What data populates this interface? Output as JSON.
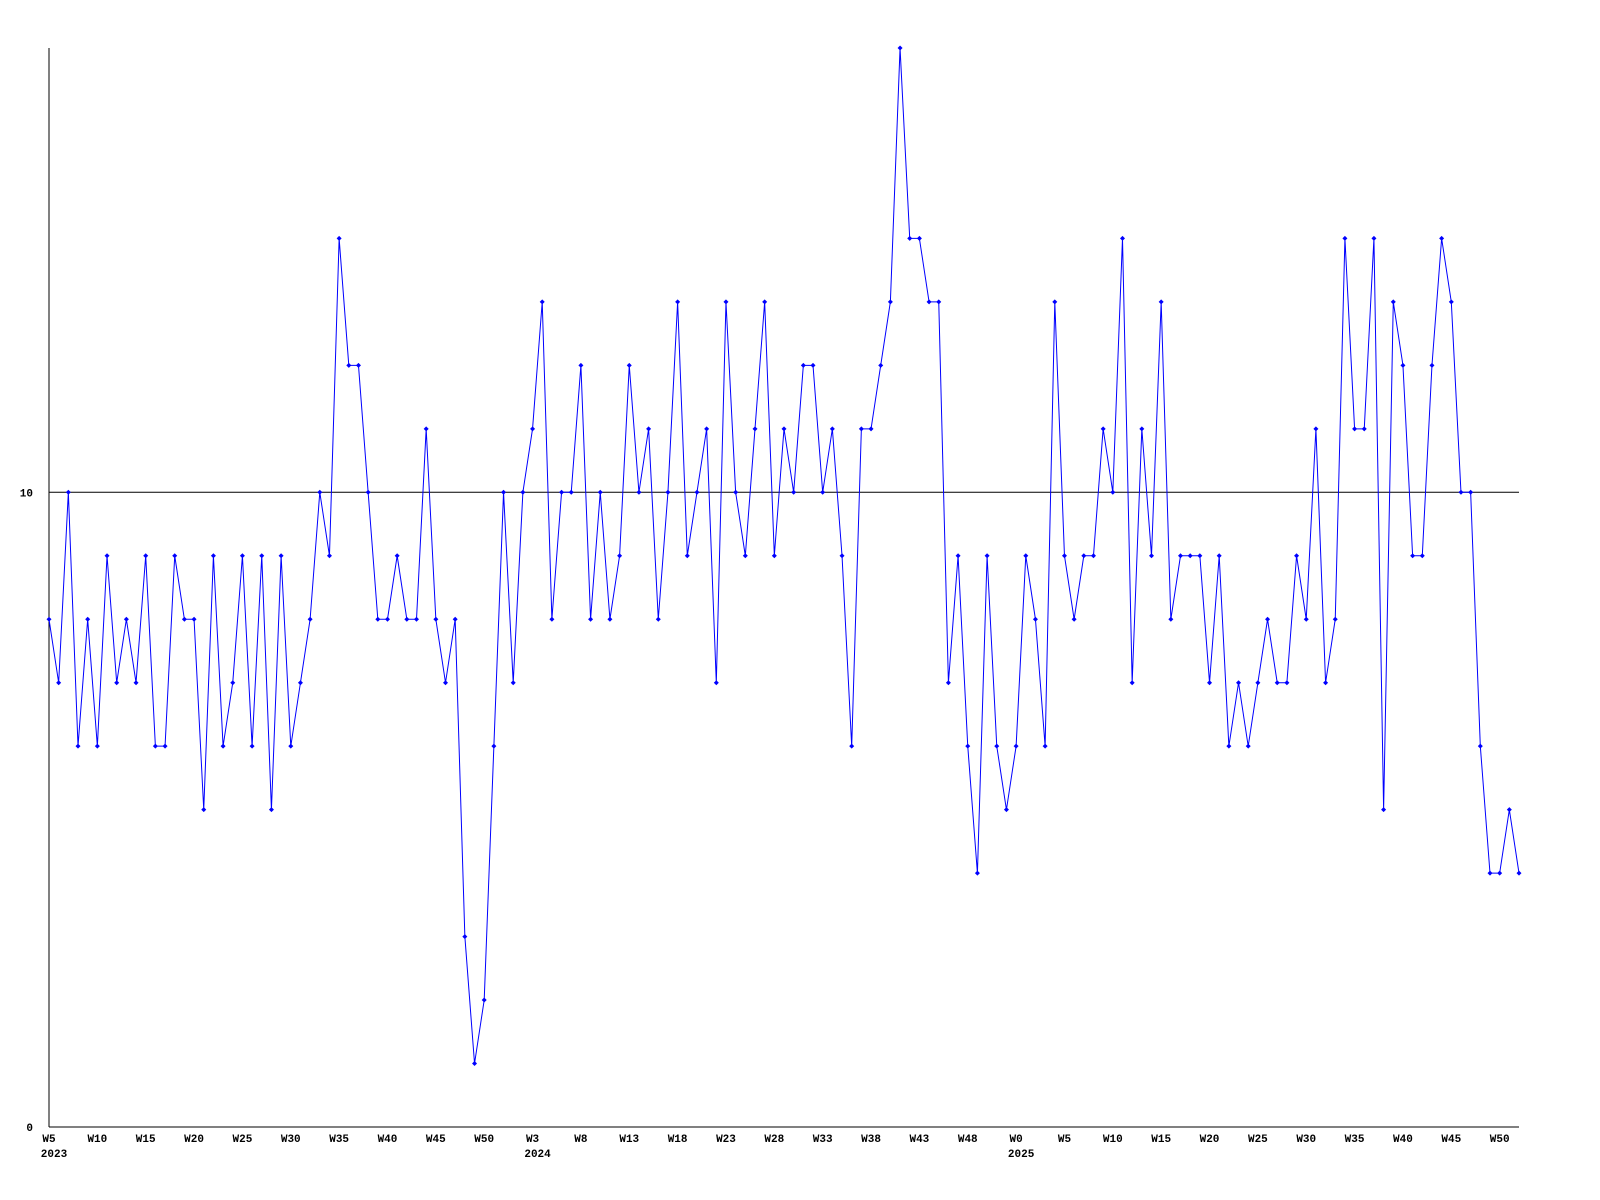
{
  "chart_data": {
    "type": "line",
    "categories": [
      "W5",
      null,
      null,
      null,
      null,
      "W10",
      null,
      null,
      null,
      null,
      "W15",
      null,
      null,
      null,
      null,
      "W20",
      null,
      null,
      null,
      null,
      "W25",
      null,
      null,
      null,
      null,
      "W30",
      null,
      null,
      null,
      null,
      "W35",
      null,
      null,
      null,
      null,
      "W40",
      null,
      null,
      null,
      null,
      "W45",
      null,
      null,
      null,
      null,
      "W50",
      null,
      null,
      null,
      null,
      "W3",
      null,
      null,
      null,
      null,
      "W8",
      null,
      null,
      null,
      null,
      "W13",
      null,
      null,
      null,
      null,
      "W18",
      null,
      null,
      null,
      null,
      "W23",
      null,
      null,
      null,
      null,
      "W28",
      null,
      null,
      null,
      null,
      "W33",
      null,
      null,
      null,
      null,
      "W38",
      null,
      null,
      null,
      null,
      "W43",
      null,
      null,
      null,
      null,
      "W48",
      null,
      null,
      null,
      null,
      "W0",
      null,
      null,
      null,
      null,
      "W5",
      null,
      null,
      null,
      null,
      "W10",
      null,
      null,
      null,
      null,
      "W15",
      null,
      null,
      null,
      null,
      "W20",
      null,
      null,
      null,
      null,
      "W25",
      null,
      null,
      null,
      null,
      "W30",
      null,
      null,
      null,
      null,
      "W35",
      null,
      null,
      null,
      null,
      "W40",
      null,
      null,
      null,
      null,
      "W45",
      null,
      null,
      null,
      null,
      "W50",
      null,
      null
    ],
    "year_categories": [
      "2023",
      null,
      null,
      null,
      null,
      null,
      null,
      null,
      null,
      null,
      null,
      null,
      null,
      null,
      null,
      null,
      null,
      null,
      null,
      null,
      null,
      null,
      null,
      null,
      null,
      null,
      null,
      null,
      null,
      null,
      null,
      null,
      null,
      null,
      null,
      null,
      null,
      null,
      null,
      null,
      null,
      null,
      null,
      null,
      null,
      null,
      null,
      null,
      null,
      null,
      "2024",
      null,
      null,
      null,
      null,
      null,
      null,
      null,
      null,
      null,
      null,
      null,
      null,
      null,
      null,
      null,
      null,
      null,
      null,
      null,
      null,
      null,
      null,
      null,
      null,
      null,
      null,
      null,
      null,
      null,
      null,
      null,
      null,
      null,
      null,
      null,
      null,
      null,
      null,
      null,
      null,
      null,
      null,
      null,
      null,
      null,
      null,
      null,
      null,
      null,
      "2025",
      null,
      null,
      null,
      null,
      null,
      null,
      null,
      null,
      null,
      null,
      null,
      null,
      null,
      null,
      null,
      null,
      null,
      null,
      null,
      null,
      null,
      null,
      null,
      null,
      null,
      null,
      null,
      null,
      null,
      null,
      null,
      null,
      null,
      null,
      null,
      null,
      null,
      null,
      null,
      null,
      null,
      null,
      null,
      null,
      null,
      null,
      null,
      null,
      null,
      null,
      null,
      null
    ],
    "series": [
      {
        "color": "#0000ff",
        "values": [
          8,
          7,
          10,
          6,
          8,
          6,
          9,
          7,
          8,
          7,
          9,
          6,
          6,
          9,
          8,
          8,
          5,
          9,
          6,
          7,
          9,
          6,
          9,
          5,
          9,
          6,
          7,
          8,
          10,
          9,
          14,
          12,
          12,
          10,
          8,
          8,
          9,
          8,
          8,
          11,
          8,
          7,
          8,
          3,
          1,
          2,
          6,
          10,
          7,
          10,
          11,
          13,
          8,
          10,
          10,
          12,
          8,
          10,
          8,
          9,
          12,
          10,
          11,
          8,
          10,
          13,
          9,
          10,
          11,
          7,
          13,
          10,
          9,
          11,
          13,
          9,
          11,
          10,
          12,
          12,
          10,
          11,
          9,
          6,
          11,
          11,
          12,
          13,
          17,
          14,
          14,
          13,
          13,
          7,
          9,
          6,
          4,
          9,
          6,
          5,
          6,
          9,
          8,
          6,
          13,
          9,
          8,
          9,
          9,
          11,
          10,
          14,
          7,
          11,
          9,
          13,
          8,
          9,
          9,
          9,
          7,
          9,
          6,
          7,
          6,
          7,
          8,
          7,
          7,
          9,
          8,
          11,
          7,
          8,
          14,
          11,
          11,
          14,
          5,
          13,
          12,
          9,
          9,
          12,
          14,
          13,
          10,
          10,
          6,
          4,
          4,
          5,
          4
        ]
      }
    ],
    "ylim": [
      0,
      17
    ],
    "yticks": [
      0,
      10
    ],
    "grid": true
  }
}
